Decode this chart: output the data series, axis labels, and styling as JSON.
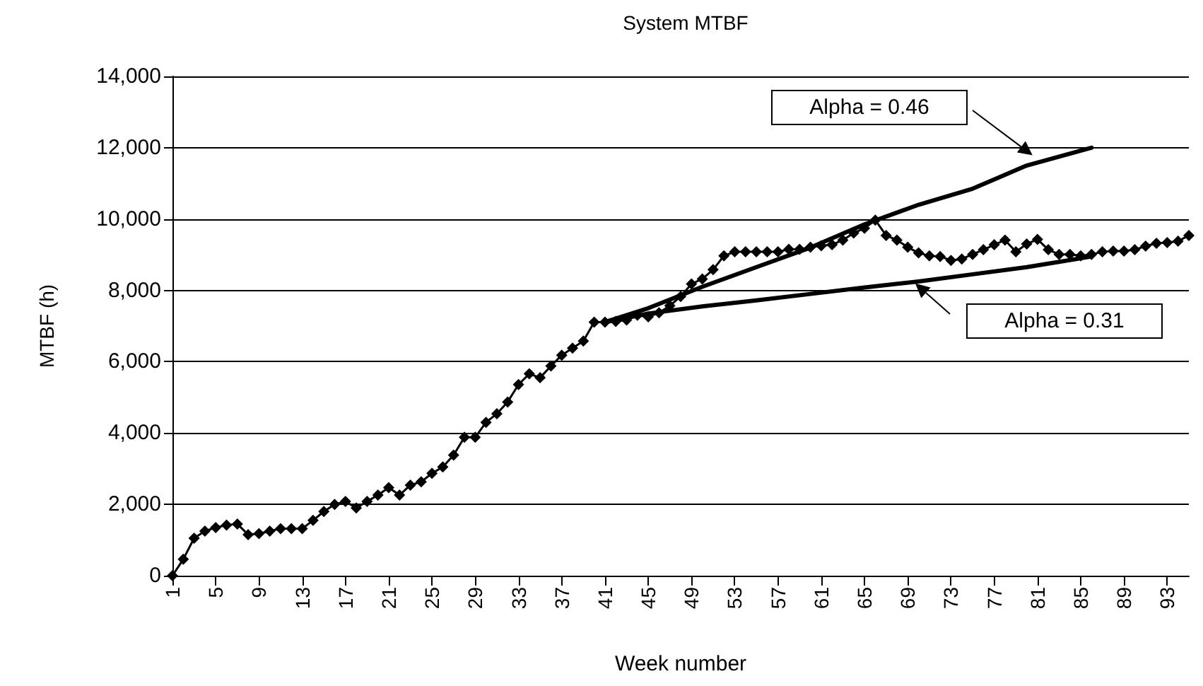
{
  "chart_data": {
    "type": "line",
    "title": "System MTBF",
    "xlabel": "Week number",
    "ylabel": "MTBF (h)",
    "xlim": [
      1,
      95
    ],
    "xticks": [
      1,
      5,
      9,
      13,
      17,
      21,
      25,
      29,
      33,
      37,
      41,
      45,
      49,
      53,
      57,
      61,
      65,
      69,
      73,
      77,
      81,
      85,
      89,
      93
    ],
    "ylim": [
      0,
      14000
    ],
    "yticks": [
      0,
      {
        "value": 2000,
        "label": "2,000"
      },
      {
        "value": 4000,
        "label": "4,000"
      },
      {
        "value": 6000,
        "label": "6,000"
      },
      {
        "value": 8000,
        "label": "8,000"
      },
      {
        "value": 10000,
        "label": "10,000"
      },
      {
        "value": 12000,
        "label": "12,000"
      },
      {
        "value": 14000,
        "label": "14,000"
      }
    ],
    "grid": "y",
    "series": [
      {
        "color": "#000000",
        "marker": "diamond",
        "x": [
          1,
          2,
          3,
          4,
          5,
          6,
          7,
          8,
          9,
          10,
          11,
          12,
          13,
          14,
          15,
          16,
          17,
          18,
          19,
          20,
          21,
          22,
          23,
          24,
          25,
          26,
          27,
          28,
          29,
          30,
          31,
          32,
          33,
          34,
          35,
          36,
          37,
          38,
          39,
          40,
          41,
          42,
          43,
          44,
          45,
          46,
          47,
          48,
          49,
          50,
          51,
          52,
          53,
          54,
          55,
          56,
          57,
          58,
          59,
          60,
          61,
          62,
          63,
          64,
          65,
          66,
          67,
          68,
          69,
          70,
          71,
          72,
          73,
          74,
          75,
          76,
          77,
          78,
          79,
          80,
          81,
          82,
          83,
          84,
          85,
          86,
          87,
          88,
          89,
          90,
          91,
          92,
          93,
          94,
          95
        ],
        "values": [
          0,
          460,
          1050,
          1250,
          1350,
          1420,
          1450,
          1150,
          1180,
          1250,
          1320,
          1320,
          1320,
          1550,
          1800,
          2000,
          2080,
          1900,
          2080,
          2260,
          2470,
          2260,
          2540,
          2630,
          2870,
          3050,
          3380,
          3880,
          3880,
          4300,
          4540,
          4870,
          5360,
          5660,
          5550,
          5880,
          6180,
          6380,
          6580,
          7110,
          7110,
          7130,
          7170,
          7300,
          7260,
          7370,
          7570,
          7830,
          8180,
          8320,
          8580,
          8970,
          9080,
          9080,
          9080,
          9080,
          9080,
          9150,
          9150,
          9210,
          9250,
          9280,
          9410,
          9610,
          9740,
          9970,
          9540,
          9410,
          9210,
          9050,
          8970,
          8950,
          8840,
          8880,
          9010,
          9140,
          9280,
          9410,
          9080,
          9300,
          9430,
          9140,
          9010,
          9010,
          8970,
          9010,
          9080,
          9100,
          9100,
          9140,
          9240,
          9320,
          9340,
          9380,
          9540
        ]
      },
      {
        "color": "#000000",
        "marker": "none",
        "x": [
          41,
          45,
          50,
          55,
          60,
          65,
          70,
          75,
          80,
          86
        ],
        "values": [
          7110,
          7500,
          8100,
          8650,
          9200,
          9850,
          10400,
          10850,
          11500,
          12000
        ]
      },
      {
        "color": "#000000",
        "marker": "none",
        "x": [
          41,
          45,
          50,
          55,
          60,
          65,
          70,
          75,
          80,
          86
        ],
        "values": [
          7110,
          7350,
          7550,
          7720,
          7900,
          8080,
          8250,
          8450,
          8650,
          8950
        ]
      }
    ],
    "annotations": [
      "Alpha = 0.46",
      "Alpha = 0.31"
    ]
  }
}
